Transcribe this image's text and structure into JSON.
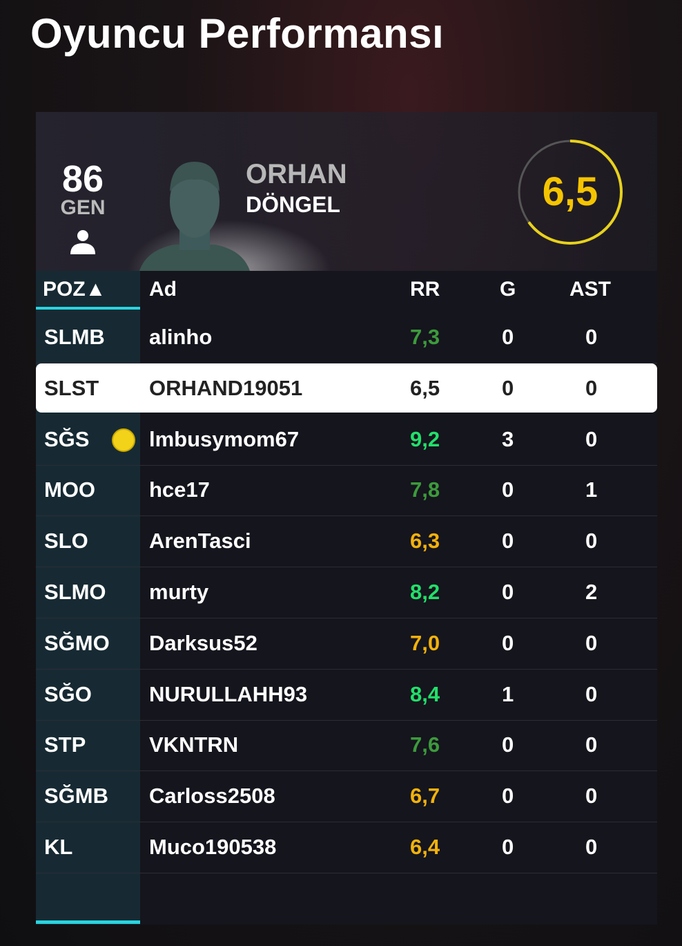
{
  "title": "Oyuncu Performansı",
  "player": {
    "overall": "86",
    "overall_label": "GEN",
    "first_name": "ORHAN",
    "last_name": "DÖNGEL",
    "rating": "6,5",
    "rating_fraction": 0.65,
    "rating_color": "#f5c400"
  },
  "table": {
    "headers": {
      "pos": "POZ▲",
      "name": "Ad",
      "rr": "RR",
      "g": "G",
      "ast": "AST"
    },
    "rows": [
      {
        "pos": "SLMB",
        "name": "alinho",
        "rr": "7,3",
        "g": "0",
        "ast": "0",
        "rr_color": "#3c9b3c"
      },
      {
        "pos": "SLST",
        "name": "ORHAND19051",
        "rr": "6,5",
        "g": "0",
        "ast": "0",
        "selected": true
      },
      {
        "pos": "SĞS",
        "name": "lmbusymom67",
        "rr": "9,2",
        "g": "3",
        "ast": "0",
        "rr_color": "#22e06a",
        "icon": "ball-icon"
      },
      {
        "pos": "MOO",
        "name": "hce17",
        "rr": "7,8",
        "g": "0",
        "ast": "1",
        "rr_color": "#3c9b3c"
      },
      {
        "pos": "SLO",
        "name": "ArenTasci",
        "rr": "6,3",
        "g": "0",
        "ast": "0",
        "rr_color": "#f2b20c"
      },
      {
        "pos": "SLMO",
        "name": "murty",
        "rr": "8,2",
        "g": "0",
        "ast": "2",
        "rr_color": "#22e06a"
      },
      {
        "pos": "SĞMO",
        "name": "Darksus52",
        "rr": "7,0",
        "g": "0",
        "ast": "0",
        "rr_color": "#f2b20c"
      },
      {
        "pos": "SĞO",
        "name": "NURULLAHH93",
        "rr": "8,4",
        "g": "1",
        "ast": "0",
        "rr_color": "#22e06a"
      },
      {
        "pos": "STP",
        "name": "VKNTRN",
        "rr": "7,6",
        "g": "0",
        "ast": "0",
        "rr_color": "#3c9b3c"
      },
      {
        "pos": "SĞMB",
        "name": "Carloss2508",
        "rr": "6,7",
        "g": "0",
        "ast": "0",
        "rr_color": "#f2b20c"
      },
      {
        "pos": "KL",
        "name": "Muco190538",
        "rr": "6,4",
        "g": "0",
        "ast": "0",
        "rr_color": "#f2b20c"
      }
    ]
  }
}
